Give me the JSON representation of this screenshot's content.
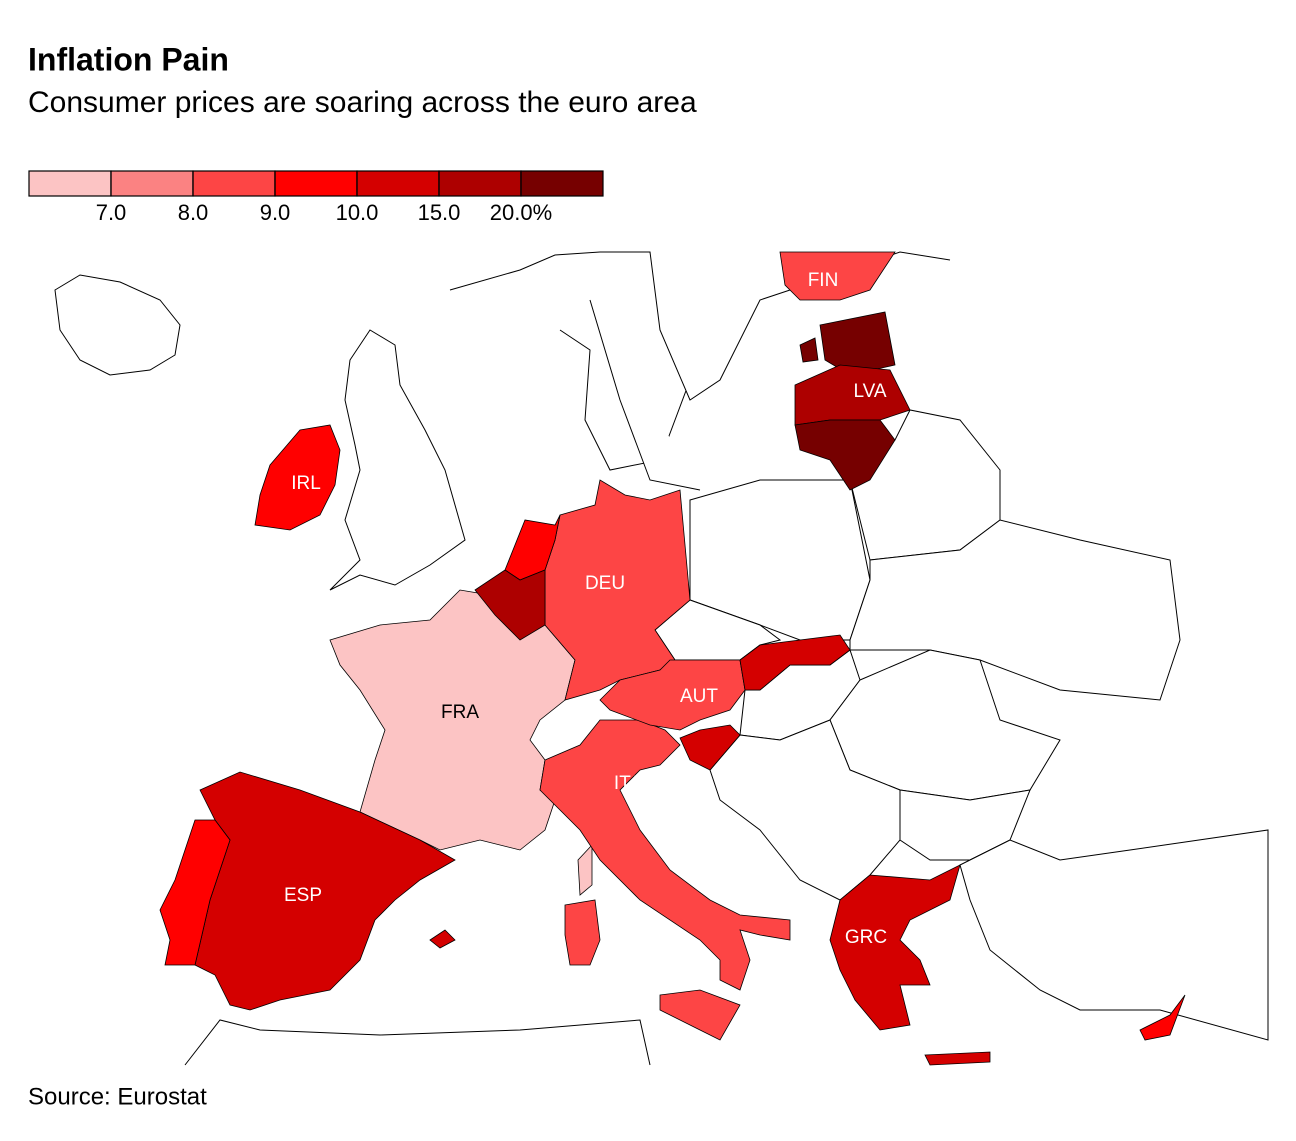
{
  "header": {
    "title": "Inflation Pain",
    "subtitle": "Consumer prices are soaring across the euro area"
  },
  "legend": {
    "colors": [
      "#fcc4c4",
      "#fb8282",
      "#fd4545",
      "#ff0000",
      "#d40000",
      "#ad0000",
      "#760000"
    ],
    "ticks": [
      {
        "value": 7,
        "label": "7.0"
      },
      {
        "value": 8,
        "label": "8.0"
      },
      {
        "value": 9,
        "label": "9.0"
      },
      {
        "value": 10,
        "label": "10.0"
      },
      {
        "value": 15,
        "label": "15.0"
      },
      {
        "value": 20,
        "label": "20.0%"
      }
    ]
  },
  "map": {
    "regions": [
      {
        "label": "FRA",
        "color": "#fcc4c4"
      },
      {
        "label": "ESP",
        "color": "#d40000"
      },
      {
        "color": "#ff0000"
      },
      {
        "label": "ITA",
        "color": "#fd4545"
      },
      {
        "label": "DEU",
        "color": "#fd4545"
      },
      {
        "color": "#ff0000"
      },
      {
        "color": "#ad0000"
      },
      {
        "label": "AUT",
        "color": "#fd4545"
      },
      {
        "color": "#d40000"
      },
      {
        "color": "#d40000"
      },
      {
        "label": "IRL",
        "color": "#ff0000"
      },
      {
        "label": "FIN",
        "color": "#fd4545"
      },
      {
        "color": "#760000"
      },
      {
        "label": "LVA",
        "color": "#ad0000"
      },
      {
        "color": "#760000"
      },
      {
        "label": "GRC",
        "color": "#d40000"
      },
      {
        "color": "#ff0000"
      }
    ]
  },
  "footer": {
    "source": "Source: Eurostat"
  }
}
